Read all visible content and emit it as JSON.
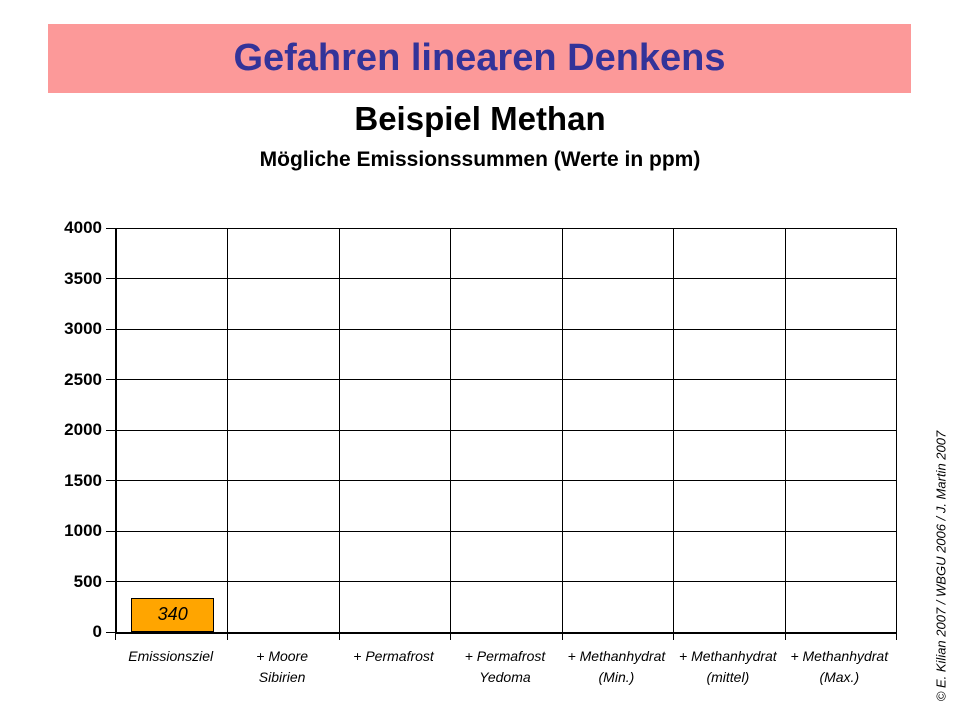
{
  "slide": {
    "banner_title": "Gefahren linearen Denkens",
    "subtitle": "Beispiel Methan",
    "copyright": "© E. Kilian 2007 / WBGU 2006 / J. Martin 2007"
  },
  "colors": {
    "banner_bg": "#FC9999",
    "banner_text": "#333399",
    "bar_fill": "#FFA500",
    "bar_border": "#000000",
    "grid": "#000000",
    "background": "#FFFFFF"
  },
  "chart_data": {
    "type": "bar",
    "title": "Mögliche Emissionssummen (Werte in ppm)",
    "categories": [
      "Emissionsziel",
      "+ Moore\nSibirien",
      "+ Permafrost",
      "+ Permafrost\nYedoma",
      "+ Methanhydrat\n(Min.)",
      "+ Methanhydrat\n(mittel)",
      "+ Methanhydrat\n(Max.)"
    ],
    "values": [
      340,
      null,
      null,
      null,
      null,
      null,
      null
    ],
    "bar_labels": [
      "340",
      "",
      "",
      "",
      "",
      "",
      ""
    ],
    "xlabel": "",
    "ylabel": "",
    "ylim": [
      0,
      4000
    ],
    "ytick_step": 500,
    "yticks": [
      0,
      500,
      1000,
      1500,
      2000,
      2500,
      3000,
      3500,
      4000
    ],
    "grid": true,
    "legend": false
  }
}
